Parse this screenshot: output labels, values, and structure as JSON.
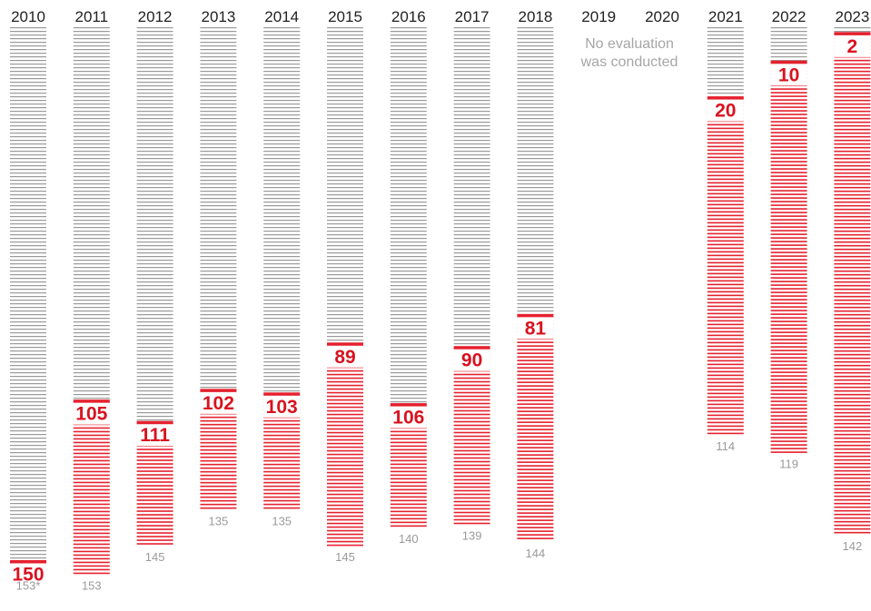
{
  "chart_data": {
    "type": "bar",
    "categories": [
      "2010",
      "2011",
      "2012",
      "2013",
      "2014",
      "2015",
      "2016",
      "2017",
      "2018",
      "2019",
      "2020",
      "2021",
      "2022",
      "2023"
    ],
    "series": [
      {
        "values": [
          150,
          105,
          111,
          102,
          103,
          89,
          106,
          90,
          81,
          null,
          null,
          20,
          10,
          2
        ]
      }
    ],
    "totals": [
      153,
      153,
      145,
      135,
      135,
      145,
      140,
      139,
      144,
      null,
      null,
      114,
      119,
      142
    ],
    "total_labels": [
      "153*",
      "153",
      "145",
      "135",
      "135",
      "145",
      "140",
      "139",
      "144",
      "",
      "",
      "114",
      "119",
      "142"
    ],
    "missing_note": [
      "No evaluation",
      "was conducted"
    ],
    "ylim": [
      0,
      153
    ],
    "grid": false
  },
  "colors": {
    "filled": "#e5202e",
    "remaining": "#9a9a9a",
    "value_label": "#d9121f",
    "total_label": "#9a9a9a",
    "year_label": "#222222",
    "note": "#a6a6a6"
  }
}
